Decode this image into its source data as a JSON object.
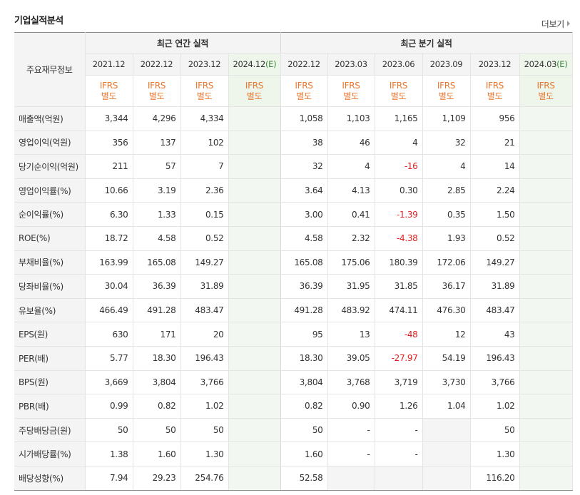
{
  "title": "기업실적분석",
  "more_label": "더보기",
  "corner_label": "주요재무정보",
  "groups": {
    "annual": "최근 연간 실적",
    "quarter": "최근 분기 실적"
  },
  "annual_dates": [
    "2021.12",
    "2022.12",
    "2023.12",
    "2024.12"
  ],
  "annual_est": "(E)",
  "quarter_dates": [
    "2022.12",
    "2023.03",
    "2023.06",
    "2023.09",
    "2023.12",
    "2024.03"
  ],
  "quarter_est": "(E)",
  "ifrs_line1": "IFRS",
  "ifrs_line2": "별도",
  "rows": [
    {
      "label": "매출액(억원)",
      "annual": [
        "3,344",
        "4,296",
        "4,334",
        ""
      ],
      "quarter": [
        "1,058",
        "1,103",
        "1,165",
        "1,109",
        "956",
        ""
      ]
    },
    {
      "label": "영업이익(억원)",
      "annual": [
        "356",
        "137",
        "102",
        ""
      ],
      "quarter": [
        "38",
        "46",
        "4",
        "32",
        "21",
        ""
      ]
    },
    {
      "label": "당기순이익(억원)",
      "annual": [
        "211",
        "57",
        "7",
        ""
      ],
      "quarter": [
        "32",
        "4",
        "-16",
        "4",
        "14",
        ""
      ]
    },
    {
      "label": "영업이익률(%)",
      "annual": [
        "10.66",
        "3.19",
        "2.36",
        ""
      ],
      "quarter": [
        "3.64",
        "4.13",
        "0.30",
        "2.85",
        "2.24",
        ""
      ]
    },
    {
      "label": "순이익률(%)",
      "annual": [
        "6.30",
        "1.33",
        "0.15",
        ""
      ],
      "quarter": [
        "3.00",
        "0.41",
        "-1.39",
        "0.35",
        "1.50",
        ""
      ]
    },
    {
      "label": "ROE(%)",
      "annual": [
        "18.72",
        "4.58",
        "0.52",
        ""
      ],
      "quarter": [
        "4.58",
        "2.32",
        "-4.38",
        "1.93",
        "0.52",
        ""
      ]
    },
    {
      "label": "부채비율(%)",
      "annual": [
        "163.99",
        "165.08",
        "149.27",
        ""
      ],
      "quarter": [
        "165.08",
        "175.06",
        "180.39",
        "172.06",
        "149.27",
        ""
      ]
    },
    {
      "label": "당좌비율(%)",
      "annual": [
        "30.04",
        "36.39",
        "31.89",
        ""
      ],
      "quarter": [
        "36.39",
        "31.95",
        "31.85",
        "36.17",
        "31.89",
        ""
      ]
    },
    {
      "label": "유보율(%)",
      "annual": [
        "466.49",
        "491.28",
        "483.47",
        ""
      ],
      "quarter": [
        "491.28",
        "483.92",
        "474.11",
        "476.30",
        "483.47",
        ""
      ]
    },
    {
      "label": "EPS(원)",
      "annual": [
        "630",
        "171",
        "20",
        ""
      ],
      "quarter": [
        "95",
        "13",
        "-48",
        "12",
        "43",
        ""
      ]
    },
    {
      "label": "PER(배)",
      "annual": [
        "5.77",
        "18.30",
        "196.43",
        ""
      ],
      "quarter": [
        "18.30",
        "39.05",
        "-27.97",
        "54.19",
        "196.43",
        ""
      ]
    },
    {
      "label": "BPS(원)",
      "annual": [
        "3,669",
        "3,804",
        "3,766",
        ""
      ],
      "quarter": [
        "3,804",
        "3,768",
        "3,719",
        "3,730",
        "3,766",
        ""
      ]
    },
    {
      "label": "PBR(배)",
      "annual": [
        "0.99",
        "0.82",
        "1.02",
        ""
      ],
      "quarter": [
        "0.82",
        "0.90",
        "1.26",
        "1.04",
        "1.02",
        ""
      ]
    },
    {
      "label": "주당배당금(원)",
      "annual": [
        "50",
        "50",
        "50",
        ""
      ],
      "quarter": [
        "50",
        "-",
        "-",
        null,
        "50",
        ""
      ]
    },
    {
      "label": "시가배당률(%)",
      "annual": [
        "1.38",
        "1.60",
        "1.30",
        ""
      ],
      "quarter": [
        "1.60",
        "-",
        "-",
        null,
        "1.30",
        ""
      ]
    },
    {
      "label": "배당성향(%)",
      "annual": [
        "7.94",
        "29.23",
        "254.76",
        ""
      ],
      "quarter": [
        "52.58",
        null,
        null,
        null,
        "116.20",
        ""
      ]
    }
  ],
  "colors": {
    "ifrs": "#e8762d",
    "negative": "#e02020",
    "estimate": "#3a8b3a",
    "estimate_bg": "#f2f8f1"
  }
}
